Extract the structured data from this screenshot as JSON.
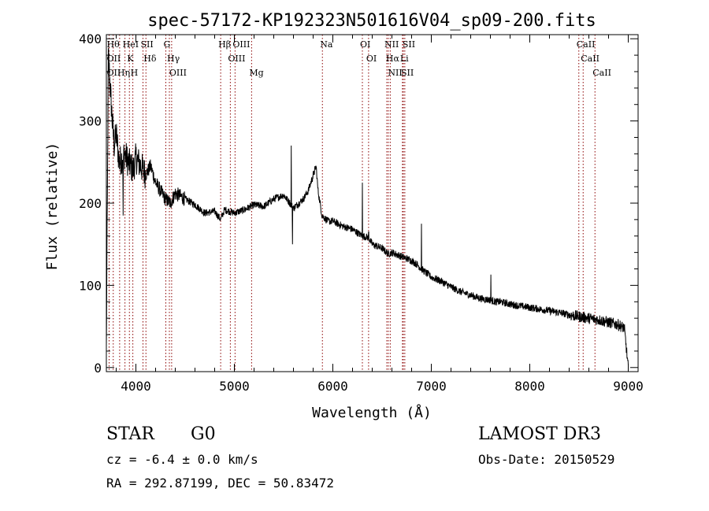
{
  "chart_data": {
    "type": "line",
    "title": "spec-57172-KP192323N501616V04_sp09-200.fits",
    "xlabel": "Wavelength (Å)",
    "ylabel": "Flux (relative)",
    "xlim": [
      3700,
      9100
    ],
    "ylim": [
      -5,
      405
    ],
    "x_ticks": [
      4000,
      5000,
      6000,
      7000,
      8000,
      9000
    ],
    "y_ticks": [
      0,
      100,
      200,
      300,
      400
    ],
    "grid": false,
    "series": [
      {
        "name": "spectrum",
        "x": [
          3700,
          3720,
          3740,
          3760,
          3780,
          3800,
          3830,
          3860,
          3890,
          3920,
          3950,
          3970,
          4000,
          4050,
          4100,
          4150,
          4200,
          4250,
          4300,
          4350,
          4400,
          4500,
          4600,
          4700,
          4800,
          4861,
          4900,
          5000,
          5100,
          5200,
          5300,
          5400,
          5500,
          5577,
          5600,
          5700,
          5750,
          5790,
          5830,
          5850,
          5890,
          5950,
          6000,
          6100,
          6200,
          6300,
          6364,
          6400,
          6500,
          6563,
          6600,
          6700,
          6800,
          6860,
          6900,
          7000,
          7100,
          7200,
          7300,
          7400,
          7500,
          7600,
          7650,
          7700,
          7800,
          7900,
          8000,
          8100,
          8200,
          8300,
          8400,
          8500,
          8600,
          8700,
          8800,
          8900,
          8960,
          9000
        ],
        "y": [
          20,
          380,
          340,
          300,
          270,
          285,
          250,
          255,
          260,
          250,
          245,
          240,
          255,
          245,
          235,
          245,
          225,
          215,
          205,
          200,
          212,
          205,
          198,
          188,
          190,
          180,
          192,
          188,
          192,
          198,
          196,
          205,
          210,
          198,
          194,
          205,
          215,
          230,
          245,
          215,
          185,
          178,
          178,
          172,
          168,
          160,
          158,
          150,
          145,
          138,
          140,
          135,
          130,
          125,
          120,
          110,
          105,
          98,
          92,
          88,
          84,
          82,
          80,
          80,
          77,
          75,
          73,
          71,
          69,
          67,
          64,
          62,
          60,
          58,
          55,
          52,
          48,
          0
        ]
      }
    ],
    "spikes": [
      {
        "x": 5577,
        "y": 270
      },
      {
        "x": 5590,
        "y": 150
      },
      {
        "x": 6300,
        "y": 225
      },
      {
        "x": 6364,
        "y": 165
      },
      {
        "x": 6900,
        "y": 175
      },
      {
        "x": 7605,
        "y": 113
      },
      {
        "x": 3870,
        "y": 185
      }
    ],
    "spectral_lines": [
      {
        "x": 3728,
        "labels": [
          "Hθ",
          "OII",
          "OII"
        ]
      },
      {
        "x": 3770,
        "labels": []
      },
      {
        "x": 3835,
        "labels": [
          "Hη"
        ]
      },
      {
        "x": 3889,
        "labels": [
          "HeI"
        ]
      },
      {
        "x": 3934,
        "labels": [
          "K"
        ]
      },
      {
        "x": 3969,
        "labels": [
          "H"
        ]
      },
      {
        "x": 4072,
        "labels": [
          "SII"
        ]
      },
      {
        "x": 4102,
        "labels": [
          "Hδ"
        ]
      },
      {
        "x": 4304,
        "labels": [
          "G"
        ]
      },
      {
        "x": 4340,
        "labels": [
          "Hγ"
        ]
      },
      {
        "x": 4363,
        "labels": [
          "OIII"
        ]
      },
      {
        "x": 4861,
        "labels": [
          "Hβ"
        ]
      },
      {
        "x": 4959,
        "labels": [
          "OIII"
        ]
      },
      {
        "x": 5007,
        "labels": [
          "OIII"
        ]
      },
      {
        "x": 5175,
        "labels": [
          "Mg"
        ]
      },
      {
        "x": 5894,
        "labels": [
          "Na"
        ]
      },
      {
        "x": 6300,
        "labels": [
          "OI"
        ]
      },
      {
        "x": 6363,
        "labels": [
          "OI"
        ]
      },
      {
        "x": 6548,
        "labels": [
          "NII"
        ]
      },
      {
        "x": 6563,
        "labels": [
          "Hα"
        ]
      },
      {
        "x": 6583,
        "labels": [
          "NII"
        ]
      },
      {
        "x": 6707,
        "labels": [
          "Li"
        ]
      },
      {
        "x": 6716,
        "labels": [
          "SII"
        ]
      },
      {
        "x": 6731,
        "labels": [
          "SII"
        ]
      },
      {
        "x": 8498,
        "labels": [
          "CaII"
        ]
      },
      {
        "x": 8542,
        "labels": [
          "CaII"
        ]
      },
      {
        "x": 8662,
        "labels": [
          "CaII"
        ]
      }
    ]
  },
  "info": {
    "object_class": "STAR",
    "subclass": "G0",
    "survey": "LAMOST DR3",
    "cz": "cz = -6.4 ± 0.0 km/s",
    "obs_date": "Obs-Date: 20150529",
    "coords": "RA = 292.87199, DEC =  50.83472"
  }
}
